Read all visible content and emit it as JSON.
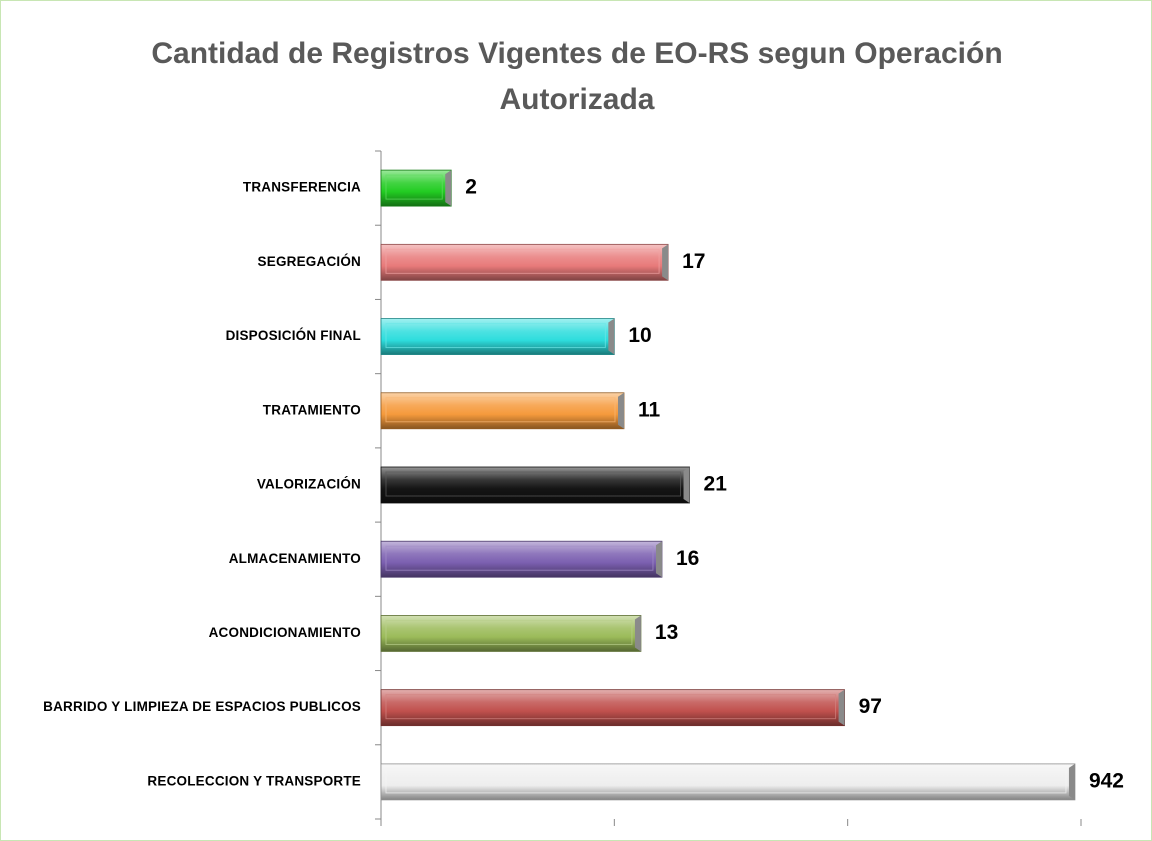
{
  "chart_data": {
    "type": "bar",
    "orientation": "horizontal",
    "title": "Cantidad de Registros Vigentes de EO-RS segun Operación Autorizada",
    "categories": [
      "TRANSFERENCIA",
      "SEGREGACIÓN",
      "DISPOSICIÓN FINAL",
      "TRATAMIENTO",
      "VALORIZACIÓN",
      "ALMACENAMIENTO",
      "ACONDICIONAMIENTO",
      "BARRIDO Y LIMPIEZA DE ESPACIOS PUBLICOS",
      "RECOLECCION Y TRANSPORTE"
    ],
    "values": [
      2,
      17,
      10,
      11,
      21,
      16,
      13,
      97,
      942
    ],
    "colors": [
      "#22cc22",
      "#e87a7a",
      "#2edddd",
      "#f59a3c",
      "#151515",
      "#7b5fb0",
      "#9bbb59",
      "#c0504d",
      "#eeeeee"
    ],
    "xscale": "log",
    "xlim": [
      1,
      1000
    ],
    "xticks": [
      1,
      10,
      100,
      1000
    ]
  }
}
